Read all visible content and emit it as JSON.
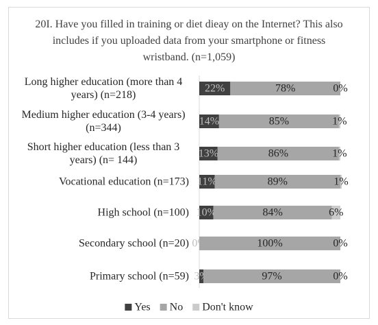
{
  "chart_data": {
    "type": "stacked-bar",
    "title": "20I. Have you filled in training or diet dieay on the Internet? This also includes if you uploaded data from your smartphone or fitness wristband. (n=1,059)",
    "categories": [
      "Long higher education (more than 4 years) (n=218)",
      "Medium higher education (3-4 years) (n=344)",
      "Short higher education (less than 3 years) (n= 144)",
      "Vocational education (n=173)",
      "High school (n=100)",
      "Secondary school (n=20)",
      "Primary school (n=59)"
    ],
    "xlim": [
      0,
      100
    ],
    "series": [
      {
        "name": "Yes",
        "color": "#404040",
        "values": [
          22,
          14,
          13,
          11,
          10,
          0,
          3
        ],
        "value_labels": [
          "22%",
          "14%",
          "13%",
          "11%",
          "10%",
          "0%",
          "3%"
        ]
      },
      {
        "name": "No",
        "color": "#a6a6a6",
        "values": [
          78,
          85,
          86,
          89,
          84,
          100,
          97
        ],
        "value_labels": [
          "78%",
          "85%",
          "86%",
          "89%",
          "84%",
          "100%",
          "97%"
        ]
      },
      {
        "name": "Don't know",
        "color": "#cbcbcb",
        "values": [
          0,
          1,
          1,
          1,
          6,
          0,
          0
        ],
        "value_labels": [
          "0%",
          "1%",
          "1%",
          "1%",
          "6%",
          "0%",
          "0%"
        ]
      }
    ]
  }
}
